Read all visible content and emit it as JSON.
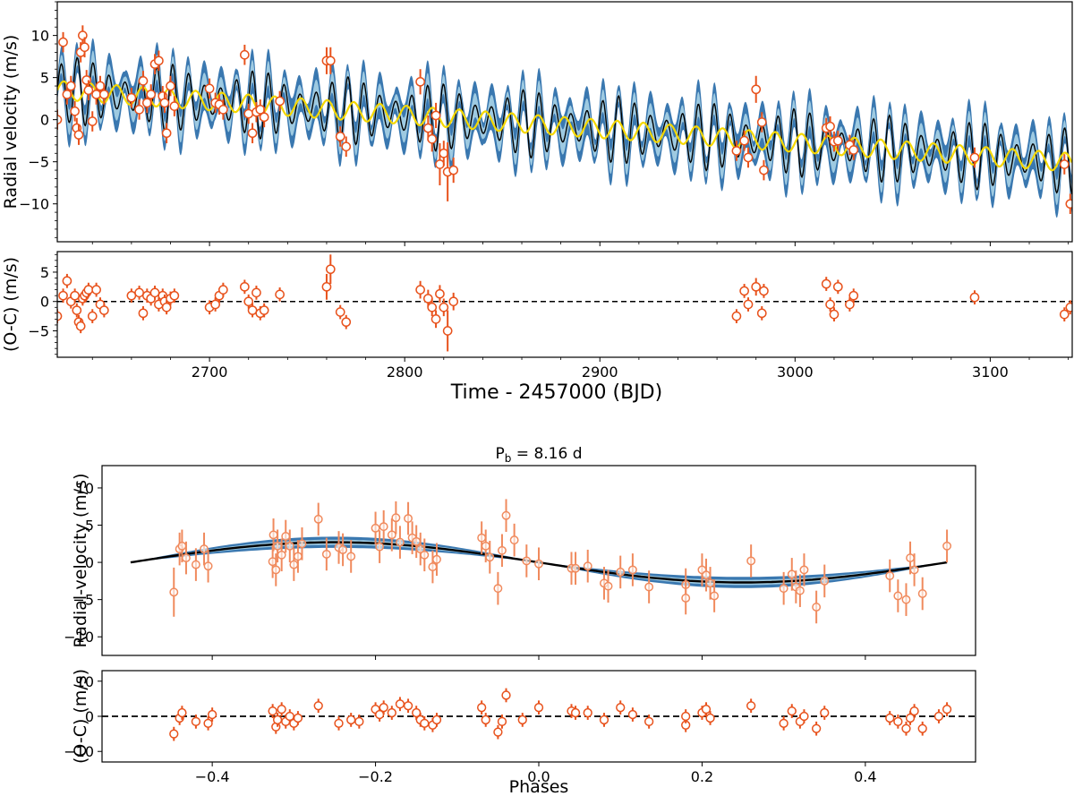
{
  "chart_data": [
    {
      "id": "top_rv",
      "type": "line",
      "title": "",
      "xlabel": "",
      "ylabel": "Radial velocity (m/s)",
      "xlim": [
        2622,
        3142
      ],
      "ylim": [
        -14.5,
        14
      ],
      "xticks": [
        2700,
        2800,
        2900,
        3000,
        3100
      ],
      "yticks": [
        10,
        5,
        0,
        -5,
        -10
      ],
      "ytick_labels": [
        "10",
        "5",
        "0",
        "−5",
        "−10"
      ],
      "colors": {
        "model": "#000000",
        "band_outer": "#3a78b0",
        "band_inner": "#9ecae1",
        "slow": "#f5d800",
        "points": "#e8521c"
      },
      "model": {
        "offset_at_start": 3.5,
        "trend_per_day": -0.0165,
        "planet_amplitude": 2.8,
        "planet_period": 8.16
      },
      "series": [
        {
          "name": "model",
          "description": "black line"
        },
        {
          "name": "slow_component",
          "description": "yellow line"
        },
        {
          "name": "data",
          "x": [
            2622,
            2625,
            2627,
            2629,
            2631,
            2632,
            2633,
            2634,
            2635,
            2636,
            2637,
            2638,
            2640,
            2642,
            2644,
            2646,
            2660,
            2664,
            2666,
            2668,
            2670,
            2672,
            2674,
            2676,
            2677,
            2678,
            2680,
            2682,
            2700,
            2703,
            2705,
            2707,
            2718,
            2720,
            2722,
            2724,
            2726,
            2728,
            2736,
            2760,
            2762,
            2767,
            2770,
            2808,
            2812,
            2814,
            2816,
            2818,
            2820,
            2822,
            2825,
            2970,
            2974,
            2976,
            2980,
            2983,
            2984,
            3016,
            3018,
            3020,
            3022,
            3028,
            3030,
            3092,
            3138,
            3141
          ],
          "y": [
            0,
            9.2,
            3,
            4,
            1,
            -1,
            -1.8,
            8,
            10,
            8.6,
            4.7,
            3.5,
            -0.2,
            3,
            4,
            3,
            2.6,
            1.2,
            4.6,
            2,
            3,
            6.6,
            7,
            2.8,
            2,
            -1.6,
            4,
            1.6,
            3.7,
            2,
            1.8,
            1.2,
            7.7,
            0.7,
            -1.6,
            0.9,
            1.2,
            0.3,
            2.2,
            7,
            7,
            -2,
            -3.2,
            4.5,
            -1,
            -2.3,
            0.5,
            -5.3,
            -4,
            -6.2,
            -6,
            -3.7,
            -2.5,
            -4.5,
            3.6,
            -0.3,
            -6,
            -1,
            -0.8,
            -2.6,
            -2.5,
            -3,
            -3.6,
            -4.5,
            -5.3,
            -10
          ],
          "yerr": [
            1.2,
            1.2,
            1.2,
            1.2,
            1.2,
            1.2,
            1.2,
            1.2,
            1.2,
            1.2,
            1.2,
            1.2,
            1.2,
            1.2,
            1.2,
            1.2,
            1.2,
            1.2,
            1.2,
            1.2,
            1.2,
            1.2,
            1.2,
            1.2,
            1.2,
            1.2,
            1.2,
            1.2,
            1.2,
            1.2,
            1.2,
            1.2,
            1.2,
            1.2,
            1.2,
            1.2,
            1.2,
            1.2,
            1.2,
            1.6,
            1.6,
            1.2,
            1.2,
            1.5,
            1.5,
            1.5,
            1.5,
            2.5,
            1.5,
            3.5,
            1.5,
            1.2,
            1.2,
            1.2,
            1.6,
            1.2,
            1.2,
            1.2,
            1.2,
            1.2,
            1.2,
            1.2,
            1.2,
            1.2,
            1.2,
            1.2
          ]
        }
      ]
    },
    {
      "id": "top_oc",
      "type": "scatter",
      "xlabel": "Time - 2457000 (BJD)",
      "ylabel": "(O-C) (m/s)",
      "xlim": [
        2622,
        3142
      ],
      "ylim": [
        -9.5,
        8.5
      ],
      "xticks": [
        2700,
        2800,
        2900,
        3000,
        3100
      ],
      "xtick_labels": [
        "2700",
        "2800",
        "2900",
        "3000",
        "3100"
      ],
      "yticks": [
        5,
        0,
        -5
      ],
      "ytick_labels": [
        "5",
        "0",
        "−5"
      ],
      "x": [
        2622,
        2625,
        2627,
        2629,
        2631,
        2632,
        2633,
        2634,
        2635,
        2636,
        2637,
        2638,
        2640,
        2642,
        2644,
        2646,
        2660,
        2664,
        2666,
        2668,
        2670,
        2672,
        2674,
        2676,
        2677,
        2678,
        2680,
        2682,
        2700,
        2703,
        2705,
        2707,
        2718,
        2720,
        2722,
        2724,
        2726,
        2728,
        2736,
        2760,
        2762,
        2767,
        2770,
        2808,
        2812,
        2814,
        2816,
        2818,
        2820,
        2822,
        2825,
        2970,
        2974,
        2976,
        2980,
        2983,
        2984,
        3016,
        3018,
        3020,
        3022,
        3028,
        3030,
        3092,
        3138,
        3141
      ],
      "y": [
        -2.5,
        1,
        3.5,
        0,
        1,
        -1.5,
        -3.5,
        -4.2,
        0.5,
        1,
        1.5,
        2,
        -2.5,
        2,
        -0.5,
        -1.5,
        1,
        1.5,
        -2,
        1,
        0.5,
        1.5,
        -0.5,
        1,
        0,
        -1,
        0.5,
        1,
        -1,
        -0.5,
        1,
        2,
        2.5,
        0,
        -1.5,
        1.5,
        -2,
        -1.5,
        1.2,
        2.5,
        5.5,
        -1.8,
        -3.5,
        2,
        0.5,
        -1,
        -3,
        1.3,
        -1,
        -5,
        0,
        -2.5,
        1.8,
        -0.5,
        2.5,
        -2,
        1.8,
        3,
        -0.5,
        -2.2,
        2.5,
        -0.5,
        1,
        0.7,
        -2.2,
        -1
      ],
      "yerr": [
        1.2,
        1.2,
        1.2,
        1.2,
        1.2,
        1.2,
        1.2,
        1.2,
        1.2,
        1.2,
        1.2,
        1.2,
        1.2,
        1.2,
        1.2,
        1.2,
        1.2,
        1.2,
        1.2,
        1.2,
        1.2,
        1.2,
        1.2,
        1.2,
        1.2,
        1.2,
        1.2,
        1.2,
        1.2,
        1.2,
        1.2,
        1.2,
        1.2,
        1.2,
        1.2,
        1.2,
        1.2,
        1.2,
        1.2,
        2.2,
        2.5,
        1.2,
        1.2,
        1.5,
        1.5,
        1.5,
        1.5,
        1.5,
        1.5,
        3.5,
        1.5,
        1.2,
        1.2,
        1.2,
        1.5,
        1.2,
        1.2,
        1.2,
        1.2,
        1.2,
        1.2,
        1.2,
        1.2,
        1.2,
        1.2,
        1.2
      ]
    },
    {
      "id": "phase_rv",
      "type": "line",
      "title": "P_b = 8.16 d",
      "title_main": "P",
      "title_sub": "b",
      "title_rest": " = 8.16 d",
      "xlabel": "",
      "ylabel": "Radial-velocity (m/s)",
      "xlim": [
        -0.535,
        0.535
      ],
      "ylim": [
        -12.5,
        13
      ],
      "yticks": [
        10,
        5,
        0,
        -5,
        -10
      ],
      "ytick_labels": [
        "10",
        "5",
        "0",
        "−5",
        "−10"
      ],
      "model": {
        "amplitude": 2.7,
        "phase_range": [
          -0.5,
          0.5
        ]
      },
      "x": [
        -0.447,
        -0.44,
        -0.437,
        -0.432,
        -0.42,
        -0.41,
        -0.405,
        -0.326,
        -0.325,
        -0.322,
        -0.32,
        -0.315,
        -0.31,
        -0.305,
        -0.3,
        -0.295,
        -0.29,
        -0.27,
        -0.26,
        -0.245,
        -0.24,
        -0.23,
        -0.2,
        -0.195,
        -0.19,
        -0.18,
        -0.175,
        -0.17,
        -0.16,
        -0.155,
        -0.15,
        -0.145,
        -0.14,
        -0.13,
        -0.125,
        -0.07,
        -0.065,
        -0.06,
        -0.05,
        -0.045,
        -0.04,
        -0.03,
        -0.015,
        0.0,
        0.04,
        0.045,
        0.06,
        0.08,
        0.085,
        0.1,
        0.115,
        0.135,
        0.18,
        0.18,
        0.2,
        0.205,
        0.21,
        0.215,
        0.26,
        0.3,
        0.31,
        0.315,
        0.32,
        0.325,
        0.34,
        0.35,
        0.43,
        0.44,
        0.45,
        0.455,
        0.46,
        0.47,
        0.5
      ],
      "y": [
        -4,
        1.8,
        2.2,
        0.6,
        -0.3,
        1.8,
        -0.5,
        0.1,
        3.7,
        -1,
        2.2,
        1,
        3.5,
        2.2,
        -0.3,
        0.8,
        2.5,
        5.8,
        1.1,
        2,
        1.7,
        0.8,
        4.6,
        2.1,
        4.8,
        3.7,
        6,
        2.7,
        5.9,
        3.3,
        2.8,
        1.8,
        1,
        -0.6,
        0.4,
        3.3,
        2.2,
        0.7,
        -3.5,
        1.6,
        6.3,
        3,
        0.2,
        -0.2,
        -0.8,
        -0.8,
        -0.5,
        -2.8,
        -3.2,
        -1.3,
        -1,
        -3.3,
        -3,
        -4.8,
        -1,
        -1.7,
        -2.8,
        -4.5,
        0.2,
        -3.5,
        -1.6,
        -3.3,
        -3.8,
        -1,
        -6,
        -2.5,
        -1.8,
        -4.5,
        -5,
        0.6,
        -1,
        -4.2,
        2.2
      ],
      "yerr": [
        3.3,
        2.2,
        2.2,
        2.2,
        2.2,
        2.2,
        2.2,
        2.2,
        2.2,
        2.2,
        2.2,
        2.2,
        2.2,
        2.2,
        2.2,
        2.2,
        2.2,
        2.2,
        2.2,
        2.2,
        2.2,
        2.2,
        2.2,
        2.2,
        2.2,
        2.2,
        2.2,
        2.2,
        2.2,
        2.2,
        2.2,
        2.2,
        2.2,
        2.2,
        2.2,
        2.2,
        2.2,
        2.2,
        2.2,
        2.2,
        2.2,
        2.2,
        2.2,
        2.2,
        2.2,
        2.2,
        2.2,
        2.2,
        2.2,
        2.2,
        2.2,
        2.2,
        2.2,
        2.2,
        2.2,
        2.2,
        2.2,
        2.2,
        2.2,
        2.2,
        2.2,
        2.2,
        2.2,
        2.2,
        2.2,
        2.2,
        2.2,
        2.2,
        2.2,
        2.2,
        2.2,
        2.2,
        2.2
      ]
    },
    {
      "id": "phase_oc",
      "type": "scatter",
      "xlabel": "Phases",
      "ylabel": "(O-C) (m/s)",
      "xlim": [
        -0.535,
        0.535
      ],
      "ylim": [
        -13,
        13
      ],
      "xticks": [
        -0.4,
        -0.2,
        0.0,
        0.2,
        0.4
      ],
      "xtick_labels": [
        "−0.4",
        "−0.2",
        "0.0",
        "0.2",
        "0.4"
      ],
      "yticks": [
        10,
        0,
        -10
      ],
      "ytick_labels": [
        "10",
        "0",
        "−10"
      ],
      "x": [
        -0.447,
        -0.44,
        -0.437,
        -0.42,
        -0.405,
        -0.4,
        -0.326,
        -0.322,
        -0.32,
        -0.315,
        -0.31,
        -0.305,
        -0.3,
        -0.295,
        -0.27,
        -0.245,
        -0.23,
        -0.22,
        -0.2,
        -0.195,
        -0.19,
        -0.18,
        -0.17,
        -0.16,
        -0.15,
        -0.145,
        -0.14,
        -0.13,
        -0.125,
        -0.07,
        -0.065,
        -0.05,
        -0.045,
        -0.04,
        -0.02,
        0.0,
        0.04,
        0.045,
        0.06,
        0.08,
        0.1,
        0.115,
        0.135,
        0.18,
        0.18,
        0.2,
        0.205,
        0.21,
        0.26,
        0.3,
        0.31,
        0.32,
        0.325,
        0.34,
        0.35,
        0.43,
        0.44,
        0.45,
        0.455,
        0.46,
        0.47,
        0.49,
        0.5
      ],
      "y": [
        -5,
        -0.5,
        1,
        -1.5,
        -2,
        0.5,
        1.5,
        -3,
        -1,
        2,
        -1.5,
        0,
        -2,
        -0.5,
        3,
        -2,
        -1,
        -1.5,
        2,
        0.5,
        2.5,
        1,
        3.5,
        3,
        1,
        -1,
        -2,
        -2.5,
        -1,
        2.5,
        -1,
        -4.5,
        -1.5,
        6,
        -1,
        2.5,
        1.5,
        1,
        1,
        -1,
        2.5,
        0.5,
        -1.5,
        -2.5,
        0,
        1,
        2,
        -0.5,
        3,
        -2,
        1.5,
        -1.5,
        0,
        -3.5,
        1,
        -0.5,
        -1.5,
        -3.5,
        -0.5,
        1.5,
        -3.5,
        0,
        2
      ]
    }
  ]
}
